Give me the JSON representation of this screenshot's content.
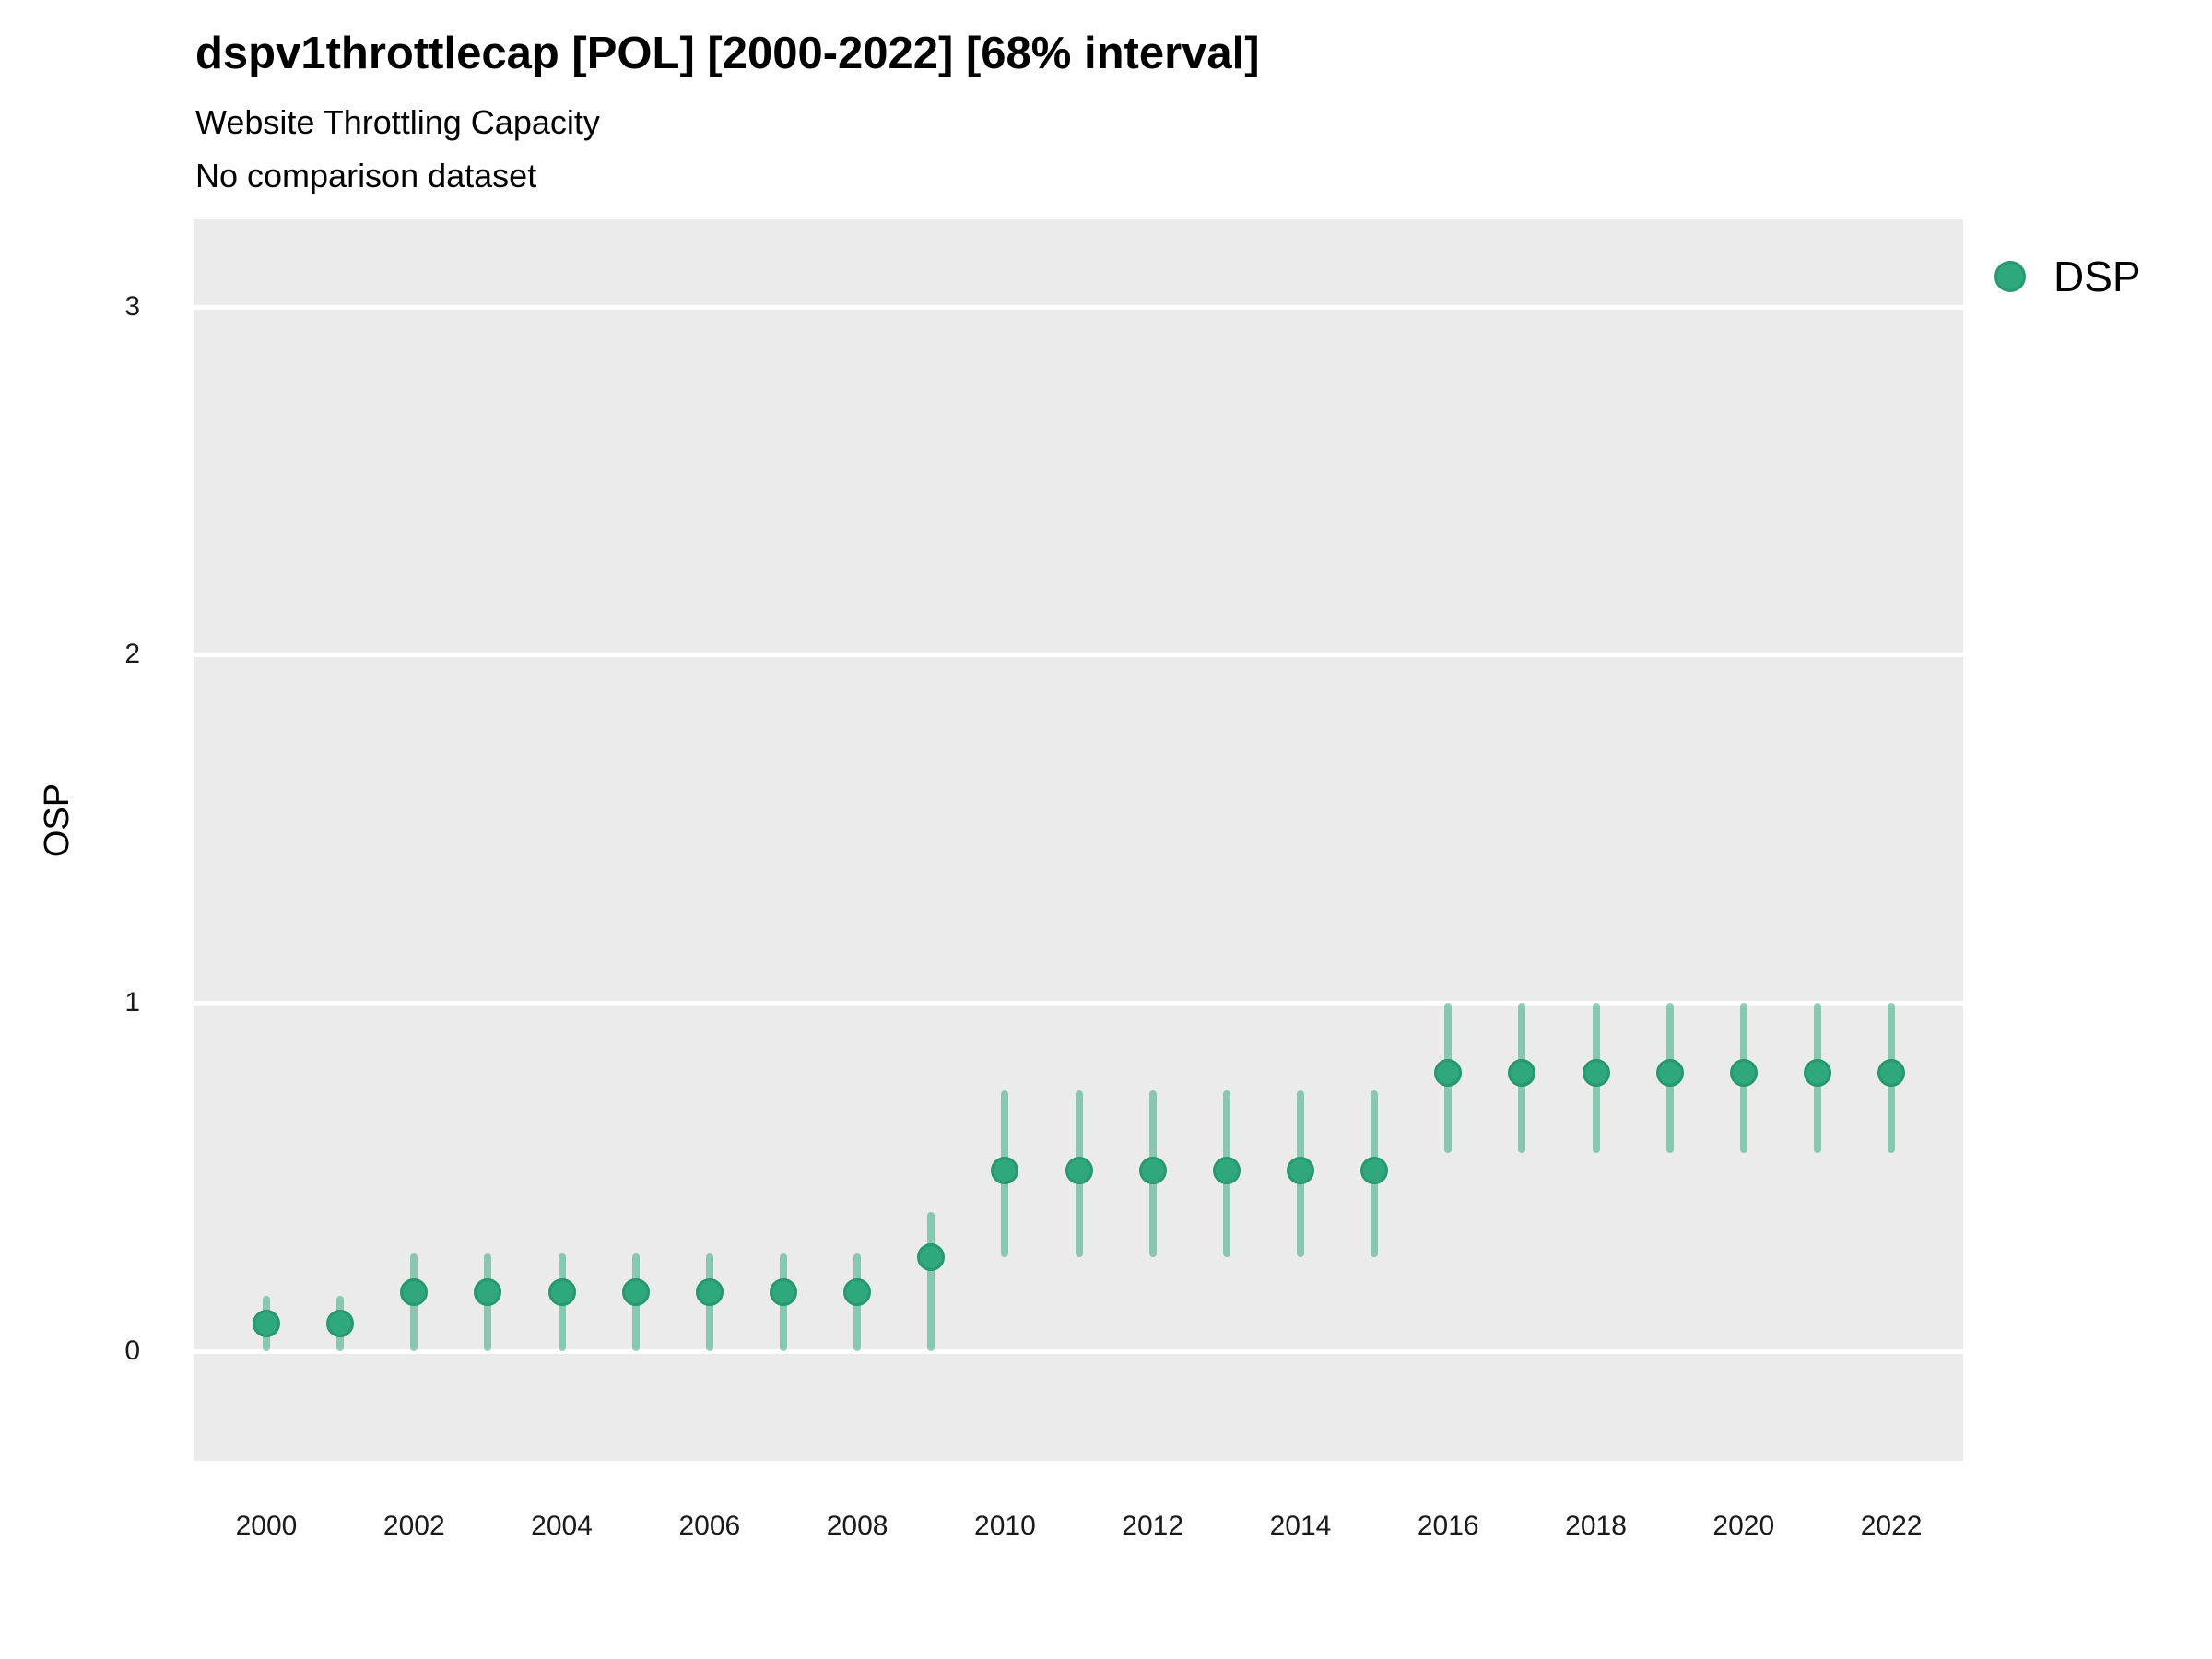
{
  "header": {
    "title": "dspv1throttlecap [POL] [2000-2022] [68% interval]",
    "subtitle": "Website Throttling Capacity",
    "note": "No comparison dataset"
  },
  "colors": {
    "point_fill": "#2EA87C",
    "point_border": "#27996F",
    "interval_bar": "rgba(46,168,124,0.52)",
    "panel_bg": "#EBEBEB",
    "gridline": "#FFFFFF",
    "text": "#000000"
  },
  "legend": {
    "label": "DSP",
    "position": "right"
  },
  "chart_data": {
    "type": "scatter",
    "title": "dspv1throttlecap [POL] [2000-2022] [68% interval]",
    "subtitle": "Website Throttling Capacity",
    "note": "No comparison dataset",
    "xlabel": "",
    "ylabel": "OSP",
    "interval_label": "68% interval",
    "grid": "major-horizontal-only",
    "legend_position": "right",
    "xlim": [
      1999.0,
      2023.0
    ],
    "ylim": [
      -0.31,
      3.25
    ],
    "y_ticks": [
      0,
      1,
      2,
      3
    ],
    "y_tick_labels": [
      "0",
      "1",
      "2",
      "3"
    ],
    "x_ticks": [
      2000,
      2002,
      2004,
      2006,
      2008,
      2010,
      2012,
      2014,
      2016,
      2018,
      2020,
      2022
    ],
    "x_tick_labels": [
      "2000",
      "2002",
      "2004",
      "2006",
      "2008",
      "2010",
      "2012",
      "2014",
      "2016",
      "2018",
      "2020",
      "2022"
    ],
    "series": [
      {
        "name": "DSP",
        "points": [
          {
            "x": 2000,
            "y": 0.08,
            "lo": 0.0,
            "hi": 0.16
          },
          {
            "x": 2001,
            "y": 0.08,
            "lo": 0.0,
            "hi": 0.16
          },
          {
            "x": 2002,
            "y": 0.17,
            "lo": 0.0,
            "hi": 0.28
          },
          {
            "x": 2003,
            "y": 0.17,
            "lo": 0.0,
            "hi": 0.28
          },
          {
            "x": 2004,
            "y": 0.17,
            "lo": 0.0,
            "hi": 0.28
          },
          {
            "x": 2005,
            "y": 0.17,
            "lo": 0.0,
            "hi": 0.28
          },
          {
            "x": 2006,
            "y": 0.17,
            "lo": 0.0,
            "hi": 0.28
          },
          {
            "x": 2007,
            "y": 0.17,
            "lo": 0.0,
            "hi": 0.28
          },
          {
            "x": 2008,
            "y": 0.17,
            "lo": 0.0,
            "hi": 0.28
          },
          {
            "x": 2009,
            "y": 0.27,
            "lo": 0.0,
            "hi": 0.4
          },
          {
            "x": 2010,
            "y": 0.52,
            "lo": 0.27,
            "hi": 0.75
          },
          {
            "x": 2011,
            "y": 0.52,
            "lo": 0.27,
            "hi": 0.75
          },
          {
            "x": 2012,
            "y": 0.52,
            "lo": 0.27,
            "hi": 0.75
          },
          {
            "x": 2013,
            "y": 0.52,
            "lo": 0.27,
            "hi": 0.75
          },
          {
            "x": 2014,
            "y": 0.52,
            "lo": 0.27,
            "hi": 0.75
          },
          {
            "x": 2015,
            "y": 0.52,
            "lo": 0.27,
            "hi": 0.75
          },
          {
            "x": 2016,
            "y": 0.8,
            "lo": 0.57,
            "hi": 1.0
          },
          {
            "x": 2017,
            "y": 0.8,
            "lo": 0.57,
            "hi": 1.0
          },
          {
            "x": 2018,
            "y": 0.8,
            "lo": 0.57,
            "hi": 1.0
          },
          {
            "x": 2019,
            "y": 0.8,
            "lo": 0.57,
            "hi": 1.0
          },
          {
            "x": 2020,
            "y": 0.8,
            "lo": 0.57,
            "hi": 1.0
          },
          {
            "x": 2021,
            "y": 0.8,
            "lo": 0.57,
            "hi": 1.0
          },
          {
            "x": 2022,
            "y": 0.8,
            "lo": 0.57,
            "hi": 1.0
          }
        ]
      }
    ]
  }
}
